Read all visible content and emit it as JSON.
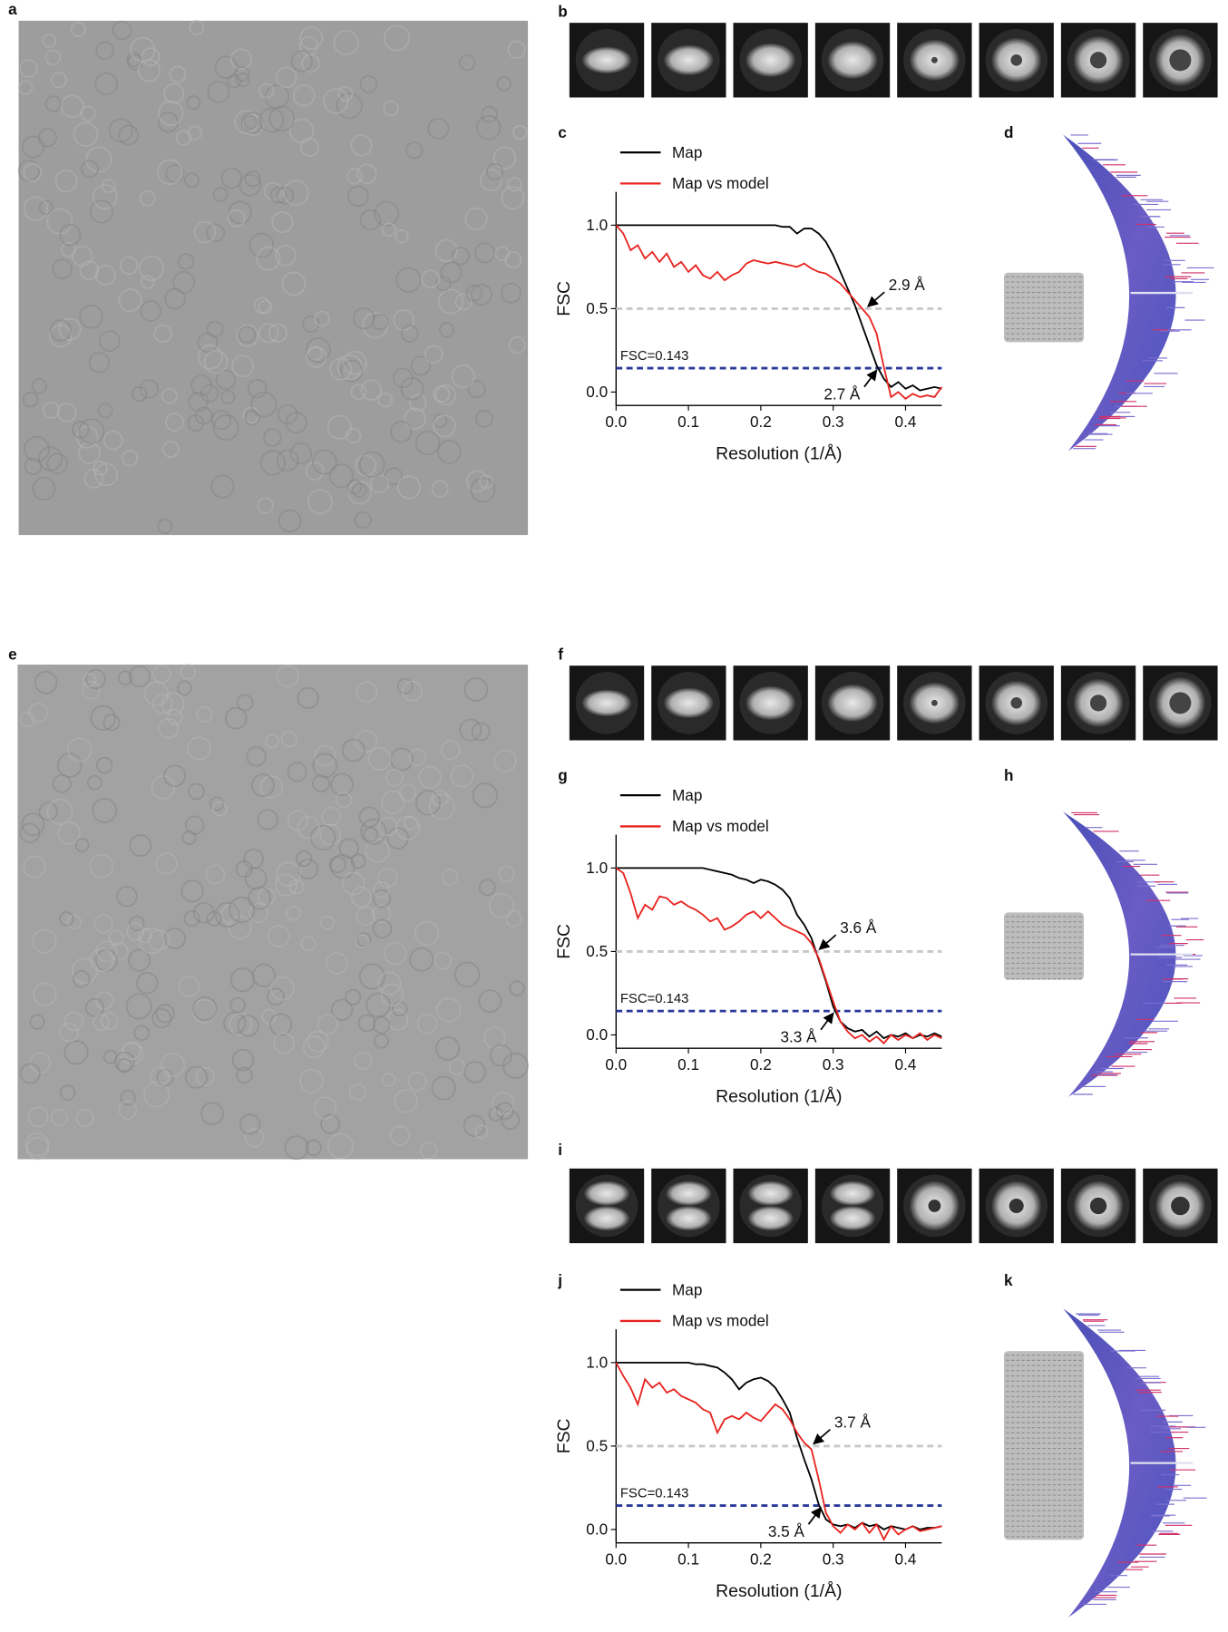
{
  "panel_labels": [
    "a",
    "b",
    "c",
    "d",
    "e",
    "f",
    "g",
    "h",
    "i",
    "j",
    "k"
  ],
  "chart_data": [
    {
      "type": "line",
      "x_label": "Resolution (1/Å)",
      "y_label": "FSC",
      "xlim": [
        0,
        0.45
      ],
      "ylim": [
        -0.08,
        1.2
      ],
      "xticks": [
        {
          "value": 0,
          "label": "0.0"
        },
        {
          "value": 0.1,
          "label": "0.1"
        },
        {
          "value": 0.2,
          "label": "0.2"
        },
        {
          "value": 0.3,
          "label": "0.3"
        },
        {
          "value": 0.4,
          "label": "0.4"
        }
      ],
      "yticks": [
        {
          "value": 0,
          "label": "0.0"
        },
        {
          "value": 0.5,
          "label": "0.5"
        },
        {
          "value": 1,
          "label": "1.0"
        }
      ],
      "x": [
        0,
        0.01,
        0.02,
        0.03,
        0.04,
        0.05,
        0.06,
        0.07,
        0.08,
        0.09,
        0.1,
        0.11,
        0.12,
        0.13,
        0.14,
        0.15,
        0.16,
        0.17,
        0.18,
        0.19,
        0.2,
        0.21,
        0.22,
        0.23,
        0.24,
        0.25,
        0.26,
        0.27,
        0.28,
        0.29,
        0.3,
        0.31,
        0.32,
        0.33,
        0.34,
        0.35,
        0.36,
        0.37,
        0.38,
        0.39,
        0.4,
        0.41,
        0.42,
        0.43,
        0.44,
        0.45
      ],
      "series": [
        {
          "name": "Map",
          "color": "#000000",
          "values": [
            1,
            1,
            1,
            1,
            1,
            1,
            1,
            1,
            1,
            1,
            1,
            1,
            1,
            1,
            1,
            1,
            1,
            1,
            1,
            1,
            1,
            1,
            1,
            0.99,
            0.99,
            0.95,
            0.98,
            0.98,
            0.95,
            0.9,
            0.82,
            0.72,
            0.62,
            0.52,
            0.4,
            0.28,
            0.16,
            0.08,
            0.03,
            0.06,
            0.02,
            0.04,
            0.01,
            0.02,
            0.03,
            0.02
          ]
        },
        {
          "name": "Map vs model",
          "color": "#e8231f",
          "values": [
            1,
            0.95,
            0.85,
            0.88,
            0.8,
            0.84,
            0.78,
            0.83,
            0.75,
            0.78,
            0.72,
            0.76,
            0.7,
            0.68,
            0.72,
            0.67,
            0.7,
            0.72,
            0.77,
            0.79,
            0.78,
            0.77,
            0.78,
            0.77,
            0.76,
            0.75,
            0.77,
            0.74,
            0.72,
            0.71,
            0.68,
            0.65,
            0.6,
            0.55,
            0.5,
            0.45,
            0.35,
            0.15,
            -0.03,
            0,
            -0.04,
            -0.01,
            -0.03,
            -0.02,
            -0.03,
            0.03
          ]
        }
      ],
      "reference_lines": [
        {
          "value": 0.5,
          "color": "#c8c8c8"
        },
        {
          "value": 0.143,
          "color": "#2b3a9a",
          "label": "FSC=0.143"
        }
      ],
      "annotations": [
        {
          "text": "2.9 Å",
          "x": 0.345,
          "y": 0.5
        },
        {
          "text": "2.7 Å",
          "x": 0.363,
          "y": 0.143
        }
      ]
    },
    {
      "type": "line",
      "x_label": "Resolution (1/Å)",
      "y_label": "FSC",
      "xlim": [
        0,
        0.45
      ],
      "ylim": [
        -0.08,
        1.2
      ],
      "xticks": [
        {
          "value": 0,
          "label": "0.0"
        },
        {
          "value": 0.1,
          "label": "0.1"
        },
        {
          "value": 0.2,
          "label": "0.2"
        },
        {
          "value": 0.3,
          "label": "0.3"
        },
        {
          "value": 0.4,
          "label": "0.4"
        }
      ],
      "yticks": [
        {
          "value": 0,
          "label": "0.0"
        },
        {
          "value": 0.5,
          "label": "0.5"
        },
        {
          "value": 1,
          "label": "1.0"
        }
      ],
      "x": [
        0,
        0.01,
        0.02,
        0.03,
        0.04,
        0.05,
        0.06,
        0.07,
        0.08,
        0.09,
        0.1,
        0.11,
        0.12,
        0.13,
        0.14,
        0.15,
        0.16,
        0.17,
        0.18,
        0.19,
        0.2,
        0.21,
        0.22,
        0.23,
        0.24,
        0.25,
        0.26,
        0.27,
        0.28,
        0.29,
        0.3,
        0.31,
        0.32,
        0.33,
        0.34,
        0.35,
        0.36,
        0.37,
        0.38,
        0.39,
        0.4,
        0.41,
        0.42,
        0.43,
        0.44,
        0.45
      ],
      "series": [
        {
          "name": "Map",
          "color": "#000000",
          "values": [
            1,
            1,
            1,
            1,
            1,
            1,
            1,
            1,
            1,
            1,
            1,
            1,
            1,
            0.99,
            0.98,
            0.97,
            0.96,
            0.94,
            0.93,
            0.91,
            0.93,
            0.92,
            0.9,
            0.87,
            0.82,
            0.72,
            0.66,
            0.58,
            0.45,
            0.32,
            0.17,
            0.08,
            0.04,
            0.02,
            0.03,
            -0.01,
            0.02,
            -0.02,
            0,
            -0.01,
            0.01,
            -0.02,
            0,
            -0.01,
            0.01,
            -0.01
          ]
        },
        {
          "name": "Map vs model",
          "color": "#e8231f",
          "values": [
            1,
            0.97,
            0.85,
            0.7,
            0.78,
            0.75,
            0.83,
            0.82,
            0.78,
            0.8,
            0.77,
            0.75,
            0.72,
            0.68,
            0.7,
            0.63,
            0.65,
            0.68,
            0.72,
            0.74,
            0.7,
            0.74,
            0.7,
            0.66,
            0.64,
            0.62,
            0.6,
            0.55,
            0.46,
            0.33,
            0.2,
            0.08,
            0.02,
            -0.02,
            0,
            -0.04,
            -0.01,
            -0.05,
            0,
            -0.03,
            0,
            -0.02,
            0.01,
            -0.03,
            0,
            -0.02
          ]
        }
      ],
      "reference_lines": [
        {
          "value": 0.5,
          "color": "#c8c8c8"
        },
        {
          "value": 0.143,
          "color": "#2b3a9a",
          "label": "FSC=0.143"
        }
      ],
      "annotations": [
        {
          "text": "3.6 Å",
          "x": 0.278,
          "y": 0.5
        },
        {
          "text": "3.3 Å",
          "x": 0.303,
          "y": 0.143
        }
      ]
    },
    {
      "type": "line",
      "x_label": "Resolution (1/Å)",
      "y_label": "FSC",
      "xlim": [
        0,
        0.45
      ],
      "ylim": [
        -0.08,
        1.2
      ],
      "xticks": [
        {
          "value": 0,
          "label": "0.0"
        },
        {
          "value": 0.1,
          "label": "0.1"
        },
        {
          "value": 0.2,
          "label": "0.2"
        },
        {
          "value": 0.3,
          "label": "0.3"
        },
        {
          "value": 0.4,
          "label": "0.4"
        }
      ],
      "yticks": [
        {
          "value": 0,
          "label": "0.0"
        },
        {
          "value": 0.5,
          "label": "0.5"
        },
        {
          "value": 1,
          "label": "1.0"
        }
      ],
      "x": [
        0,
        0.01,
        0.02,
        0.03,
        0.04,
        0.05,
        0.06,
        0.07,
        0.08,
        0.09,
        0.1,
        0.11,
        0.12,
        0.13,
        0.14,
        0.15,
        0.16,
        0.17,
        0.18,
        0.19,
        0.2,
        0.21,
        0.22,
        0.23,
        0.24,
        0.25,
        0.26,
        0.27,
        0.28,
        0.29,
        0.3,
        0.31,
        0.32,
        0.33,
        0.34,
        0.35,
        0.36,
        0.37,
        0.38,
        0.39,
        0.4,
        0.41,
        0.42,
        0.43,
        0.44,
        0.45
      ],
      "series": [
        {
          "name": "Map",
          "color": "#000000",
          "values": [
            1,
            1,
            1,
            1,
            1,
            1,
            1,
            1,
            1,
            1,
            1,
            0.99,
            0.99,
            0.98,
            0.97,
            0.94,
            0.9,
            0.84,
            0.88,
            0.9,
            0.91,
            0.89,
            0.85,
            0.78,
            0.7,
            0.55,
            0.42,
            0.3,
            0.15,
            0.06,
            0.03,
            0.02,
            0.03,
            0.01,
            0.04,
            0.02,
            0.03,
            0,
            0.02,
            0.01,
            0,
            0.02,
            0,
            0.01,
            0.01,
            0.02
          ]
        },
        {
          "name": "Map vs model",
          "color": "#e8231f",
          "values": [
            1,
            0.92,
            0.85,
            0.75,
            0.9,
            0.85,
            0.88,
            0.82,
            0.84,
            0.8,
            0.78,
            0.76,
            0.72,
            0.7,
            0.58,
            0.66,
            0.68,
            0.66,
            0.7,
            0.67,
            0.65,
            0.7,
            0.75,
            0.72,
            0.66,
            0.58,
            0.52,
            0.48,
            0.3,
            0.1,
            0.02,
            -0.02,
            0.03,
            0,
            0.04,
            -0.02,
            0.03,
            -0.06,
            0.02,
            -0.03,
            0,
            0.02,
            -0.01,
            0,
            0.01,
            0.02
          ]
        }
      ],
      "reference_lines": [
        {
          "value": 0.5,
          "color": "#c8c8c8"
        },
        {
          "value": 0.143,
          "color": "#2b3a9a",
          "label": "FSC=0.143"
        }
      ],
      "annotations": [
        {
          "text": "3.7 Å",
          "x": 0.27,
          "y": 0.5
        },
        {
          "text": "3.5 Å",
          "x": 0.286,
          "y": 0.143
        }
      ]
    }
  ]
}
